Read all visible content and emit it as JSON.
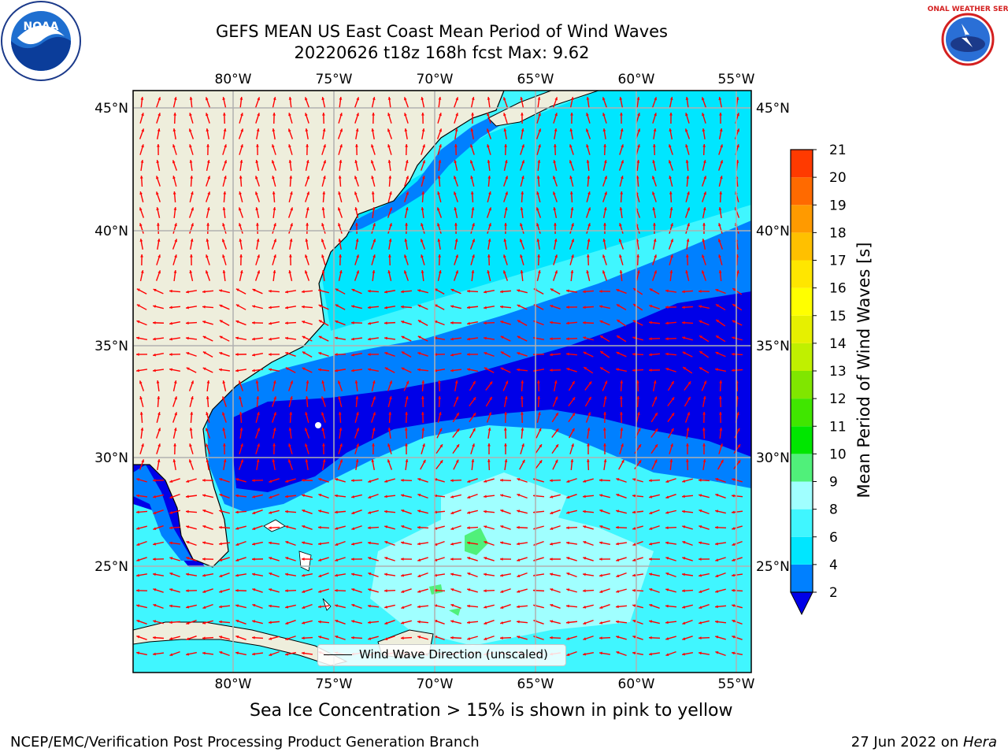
{
  "header": {
    "title_line1": "GEFS MEAN US East Coast Mean Period of Wind Waves",
    "title_line2": "20220626 t18z 168h fcst   Max: 9.62"
  },
  "logos": {
    "left": {
      "name": "noaa-logo",
      "text": "NOAA"
    },
    "right": {
      "name": "nws-logo",
      "text": "NATIONAL WEATHER SERVICE"
    }
  },
  "map": {
    "lon_ticks": [
      "80°W",
      "75°W",
      "70°W",
      "65°W",
      "60°W",
      "55°W"
    ],
    "lat_ticks": [
      "45°N",
      "40°N",
      "35°N",
      "30°N",
      "25°N"
    ],
    "legend_label": "Wind Wave Direction (unscaled)",
    "colors": {
      "land": "#eeeedc",
      "level_2_4": "#0080ff",
      "level_4_6": "#00e6ff",
      "level_6_8": "#40f6ff",
      "level_8_9": "#a0ffff",
      "below_2": "#0000e8",
      "arrow": "#ff0000"
    }
  },
  "colorbar": {
    "label": "Mean Period of Wind Waves [s]",
    "ticks": [
      "2",
      "4",
      "6",
      "8",
      "9",
      "10",
      "11",
      "12",
      "13",
      "14",
      "15",
      "16",
      "17",
      "18",
      "19",
      "20",
      "21"
    ],
    "colors": [
      "#0080ff",
      "#00e6ff",
      "#40f6ff",
      "#a0ffff",
      "#50f07a",
      "#00e600",
      "#40e600",
      "#80e600",
      "#c0f000",
      "#e6f000",
      "#ffff00",
      "#ffe600",
      "#ffc000",
      "#ff9a00",
      "#ff6a00",
      "#ff3a00",
      "#ff0000"
    ],
    "extend_color": "#0000e8"
  },
  "footer": {
    "sea_ice_note": "Sea Ice Concentration > 15% is shown in pink to yellow",
    "left": "NCEP/EMC/Verification Post Processing Product Generation Branch",
    "right_date": "27 Jun 2022 on ",
    "right_machine": "Hera"
  }
}
